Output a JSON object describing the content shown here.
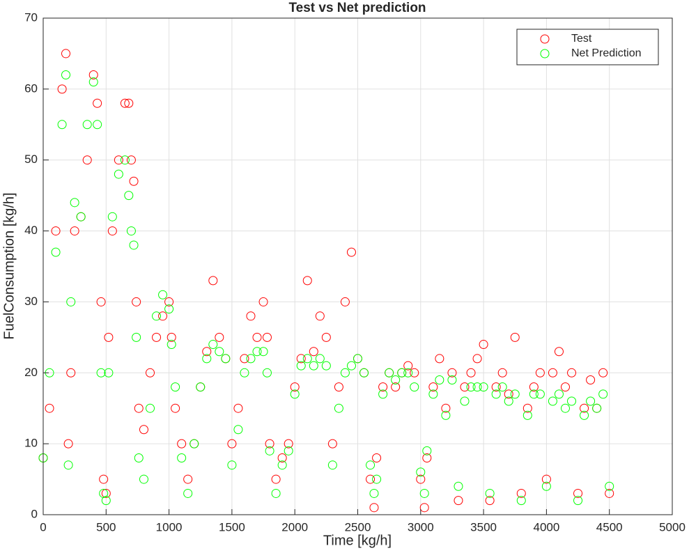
{
  "chart_data": {
    "type": "scatter",
    "title": "Test vs Net prediction",
    "x_label": "Time [kg/h]",
    "y_label": "FuelConsumption [kg/h]",
    "x": [
      0,
      50,
      100,
      150,
      180,
      200,
      220,
      250,
      300,
      350,
      400,
      430,
      460,
      480,
      500,
      520,
      550,
      600,
      650,
      680,
      700,
      720,
      740,
      760,
      800,
      850,
      900,
      950,
      1000,
      1020,
      1050,
      1100,
      1150,
      1200,
      1250,
      1300,
      1350,
      1400,
      1450,
      1500,
      1550,
      1600,
      1650,
      1700,
      1750,
      1780,
      1800,
      1850,
      1900,
      1950,
      2000,
      2050,
      2100,
      2150,
      2200,
      2250,
      2300,
      2350,
      2400,
      2450,
      2500,
      2550,
      2600,
      2630,
      2650,
      2700,
      2750,
      2800,
      2850,
      2900,
      2950,
      3000,
      3030,
      3050,
      3100,
      3150,
      3200,
      3250,
      3300,
      3350,
      3400,
      3450,
      3500,
      3550,
      3600,
      3650,
      3700,
      3750,
      3800,
      3850,
      3900,
      3950,
      4000,
      4050,
      4100,
      4150,
      4200,
      4250,
      4300,
      4350,
      4400,
      4450,
      4500
    ],
    "series": [
      {
        "name": "Test",
        "color": "#ff0000",
        "values": [
          8,
          15,
          40,
          60,
          65,
          10,
          20,
          40,
          42,
          50,
          62,
          58,
          30,
          5,
          3,
          25,
          40,
          50,
          58,
          58,
          50,
          47,
          30,
          15,
          12,
          20,
          25,
          28,
          30,
          25,
          15,
          10,
          5,
          10,
          18,
          23,
          33,
          25,
          22,
          10,
          15,
          22,
          28,
          25,
          30,
          25,
          10,
          5,
          8,
          10,
          18,
          22,
          33,
          23,
          28,
          25,
          10,
          18,
          30,
          37,
          22,
          20,
          5,
          1,
          8,
          18,
          20,
          18,
          20,
          21,
          20,
          5,
          1,
          8,
          18,
          22,
          15,
          20,
          2,
          18,
          20,
          22,
          24,
          2,
          18,
          20,
          17,
          25,
          3,
          15,
          18,
          20,
          5,
          20,
          23,
          18,
          20,
          3,
          15,
          19,
          15,
          20,
          3
        ]
      },
      {
        "name": "Net Prediction",
        "color": "#00ff00",
        "values": [
          8,
          20,
          37,
          55,
          62,
          7,
          30,
          44,
          42,
          55,
          61,
          55,
          20,
          3,
          2,
          20,
          42,
          48,
          50,
          45,
          40,
          38,
          25,
          8,
          5,
          15,
          28,
          31,
          29,
          24,
          18,
          8,
          3,
          10,
          18,
          22,
          24,
          23,
          22,
          7,
          12,
          20,
          22,
          23,
          23,
          20,
          9,
          3,
          7,
          9,
          17,
          21,
          22,
          21,
          22,
          21,
          7,
          15,
          20,
          21,
          22,
          20,
          7,
          3,
          5,
          17,
          20,
          19,
          20,
          20,
          18,
          6,
          3,
          9,
          17,
          19,
          14,
          19,
          4,
          16,
          18,
          18,
          18,
          3,
          17,
          18,
          16,
          17,
          2,
          14,
          17,
          17,
          4,
          16,
          17,
          15,
          16,
          2,
          14,
          16,
          15,
          17,
          4
        ]
      }
    ],
    "xlim": [
      0,
      5000
    ],
    "xticks": [
      0,
      500,
      1000,
      1500,
      2000,
      2500,
      3000,
      3500,
      4000,
      4500,
      5000
    ],
    "ylim": [
      0,
      70
    ],
    "yticks": [
      0,
      10,
      20,
      30,
      40,
      50,
      60,
      70
    ],
    "grid": true,
    "legend": "top-right"
  }
}
